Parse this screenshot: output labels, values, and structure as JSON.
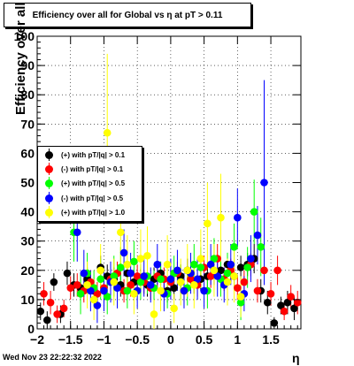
{
  "title": "Efficiency over all for Global vs   η at pT > 0.11",
  "footer_timestamp": "Wed Nov 23 22:22:32 2022",
  "chart_data": {
    "type": "scatter",
    "title": "Efficiency over all for Global vs   η at pT > 0.11",
    "xlabel": "η",
    "ylabel": "Efficiency over all (%)",
    "xlim": [
      -2,
      1.95
    ],
    "ylim": [
      0,
      100
    ],
    "x_ticks": [
      -2,
      -1.5,
      -1,
      -0.5,
      0,
      0.5,
      1,
      1.5
    ],
    "x_tick_labels": [
      "−2",
      "−1.5",
      "−1",
      "−0.5",
      "0",
      "0.5",
      "1",
      "1.5"
    ],
    "y_ticks": [
      0,
      10,
      20,
      30,
      40,
      50,
      60,
      70,
      80,
      90,
      100
    ],
    "y_tick_labels": [
      "0",
      "10",
      "20",
      "30",
      "40",
      "50",
      "60",
      "70",
      "80",
      "90",
      "100"
    ],
    "grid": true,
    "legend_position": "middle-left",
    "series": [
      {
        "name": "(+) with pT/|q| > 0.1",
        "color": "#000000",
        "x": [
          -1.95,
          -1.85,
          -1.75,
          -1.65,
          -1.55,
          -1.45,
          -1.35,
          -1.25,
          -1.15,
          -1.05,
          -0.95,
          -0.85,
          -0.75,
          -0.65,
          -0.55,
          -0.45,
          -0.35,
          -0.25,
          -0.15,
          -0.05,
          0.05,
          0.15,
          0.25,
          0.35,
          0.45,
          0.55,
          0.65,
          0.75,
          0.85,
          0.95,
          1.05,
          1.15,
          1.25,
          1.35,
          1.45,
          1.55,
          1.65,
          1.75,
          1.85
        ],
        "y": [
          6,
          3,
          16,
          5,
          19,
          15,
          14,
          17,
          13,
          21,
          18,
          17,
          15,
          19,
          16,
          17,
          15,
          17,
          19,
          13,
          14,
          18,
          20,
          16,
          17,
          18,
          19,
          20,
          22,
          18,
          21,
          22,
          24,
          13,
          9,
          2,
          8,
          9,
          7
        ],
        "err": [
          3,
          3,
          3,
          3,
          4,
          4,
          3,
          4,
          4,
          4,
          4,
          4,
          4,
          4,
          4,
          4,
          4,
          4,
          4,
          4,
          4,
          4,
          4,
          4,
          4,
          4,
          4,
          4,
          4,
          4,
          4,
          4,
          5,
          4,
          4,
          2,
          3,
          4,
          4
        ]
      },
      {
        "name": "(-) with pT/|q| > 0.1",
        "color": "#ff0000",
        "x": [
          -1.9,
          -1.8,
          -1.7,
          -1.6,
          -1.5,
          -1.4,
          -1.3,
          -1.2,
          -1.1,
          -1.0,
          -0.9,
          -0.8,
          -0.7,
          -0.6,
          -0.5,
          -0.4,
          -0.3,
          -0.2,
          -0.1,
          0.0,
          0.1,
          0.2,
          0.3,
          0.4,
          0.5,
          0.6,
          0.7,
          0.8,
          0.9,
          1.0,
          1.1,
          1.2,
          1.3,
          1.4,
          1.5,
          1.6,
          1.7,
          1.8,
          1.9
        ],
        "y": [
          12,
          9,
          5,
          7,
          14,
          15,
          13,
          16,
          12,
          14,
          17,
          19,
          13,
          15,
          18,
          16,
          14,
          18,
          17,
          16,
          19,
          13,
          17,
          15,
          21,
          18,
          24,
          17,
          20,
          14,
          16,
          22,
          13,
          20,
          12,
          20,
          6,
          11,
          9
        ],
        "err": [
          4,
          4,
          3,
          3,
          4,
          4,
          4,
          4,
          4,
          4,
          4,
          4,
          4,
          4,
          4,
          4,
          4,
          4,
          4,
          4,
          4,
          4,
          4,
          4,
          4,
          4,
          5,
          4,
          4,
          4,
          4,
          4,
          4,
          5,
          4,
          5,
          3,
          4,
          4
        ]
      },
      {
        "name": "(+) with pT/|q| > 0.5",
        "color": "#00ff00",
        "x": [
          -1.45,
          -1.35,
          -1.25,
          -1.15,
          -1.05,
          -0.95,
          -0.85,
          -0.75,
          -0.65,
          -0.55,
          -0.45,
          -0.35,
          -0.25,
          -0.15,
          -0.05,
          0.05,
          0.15,
          0.25,
          0.35,
          0.45,
          0.55,
          0.65,
          0.75,
          0.85,
          0.95,
          1.05,
          1.15,
          1.25,
          1.35
        ],
        "y": [
          33,
          12,
          19,
          14,
          17,
          11,
          18,
          21,
          13,
          23,
          16,
          18,
          14,
          17,
          12,
          19,
          16,
          14,
          22,
          21,
          13,
          24,
          17,
          19,
          28,
          9,
          21,
          40,
          28
        ],
        "err": [
          10,
          7,
          7,
          6,
          7,
          6,
          7,
          7,
          6,
          7,
          6,
          6,
          6,
          6,
          5,
          6,
          6,
          6,
          7,
          7,
          6,
          7,
          6,
          7,
          8,
          6,
          7,
          11,
          10
        ]
      },
      {
        "name": "(-) with pT/|q| > 0.5",
        "color": "#0000ff",
        "x": [
          -1.4,
          -1.3,
          -1.2,
          -1.1,
          -1.0,
          -0.9,
          -0.8,
          -0.7,
          -0.6,
          -0.5,
          -0.4,
          -0.3,
          -0.2,
          -0.1,
          0.0,
          0.1,
          0.2,
          0.3,
          0.4,
          0.5,
          0.6,
          0.7,
          0.8,
          0.9,
          1.0,
          1.1,
          1.2,
          1.3,
          1.4
        ],
        "y": [
          33,
          19,
          13,
          8,
          13,
          16,
          14,
          26,
          19,
          13,
          18,
          15,
          22,
          12,
          17,
          20,
          13,
          19,
          17,
          13,
          22,
          18,
          15,
          22,
          38,
          12,
          24,
          32,
          50
        ],
        "err": [
          10,
          8,
          7,
          6,
          7,
          7,
          7,
          8,
          7,
          6,
          7,
          6,
          7,
          6,
          7,
          7,
          6,
          7,
          7,
          6,
          7,
          7,
          6,
          7,
          10,
          6,
          8,
          10,
          35
        ]
      },
      {
        "name": "(+) with pT/|q| > 1.0",
        "color": "#ffff00",
        "x": [
          -1.25,
          -1.15,
          -1.05,
          -0.95,
          -0.85,
          -0.75,
          -0.65,
          -0.55,
          -0.45,
          -0.35,
          -0.25,
          -0.15,
          -0.05,
          0.05,
          0.15,
          0.25,
          0.35,
          0.45,
          0.55,
          0.65,
          0.75,
          0.85,
          0.95,
          1.05
        ],
        "y": [
          15,
          10,
          20,
          67,
          16,
          33,
          22,
          12,
          24,
          25,
          5,
          13,
          22,
          7,
          16,
          20,
          15,
          24,
          36,
          20,
          38,
          16,
          18,
          11
        ],
        "err": [
          8,
          7,
          9,
          27,
          8,
          12,
          10,
          7,
          10,
          10,
          5,
          7,
          10,
          5,
          8,
          9,
          8,
          10,
          14,
          9,
          15,
          8,
          9,
          7
        ]
      }
    ]
  }
}
